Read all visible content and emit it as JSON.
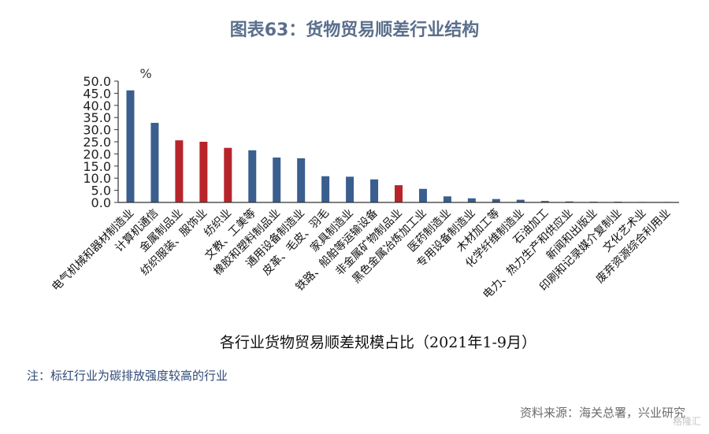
{
  "title": "图表63：货物贸易顺差行业结构",
  "note": "注：标红行业为碳排放强度较高的行业",
  "source": "资料来源：海关总署，兴业研究",
  "watermark": "格隆汇",
  "colors": {
    "blue": "#3a5f8e",
    "red": "#b7252b",
    "axis": "#333333",
    "title": "#5a6f8c"
  },
  "chart_data": {
    "type": "bar",
    "unit_label": "%",
    "xlabel": "各行业货物贸易顺差规模占比（2021年1-9月）",
    "ylabel": "",
    "ylim": [
      0,
      50
    ],
    "yticks": [
      "0.0",
      "5.0",
      "10.0",
      "15.0",
      "20.0",
      "25.0",
      "30.0",
      "35.0",
      "40.0",
      "45.0",
      "50.0"
    ],
    "grid": false,
    "categories": [
      "电气机械和器材制造业",
      "计算机通信",
      "金属制品业",
      "纺织服装、服饰业",
      "纺织业",
      "文教、工美等",
      "橡胶和塑料制品业",
      "通用设备制造业",
      "皮革、毛皮、羽毛",
      "家具制造业",
      "铁路、船舶等运输设备",
      "非金属矿物制品业",
      "黑色金属冶炼加工业",
      "医药制造业",
      "专用设备制造业",
      "木材加工等",
      "化学纤维制造业",
      "石油加工",
      "电力、热力生产和供应业",
      "新闻和出版业",
      "印刷和记录媒介复制业",
      "文化艺术业",
      "废弃资源综合利用业"
    ],
    "values": [
      46.2,
      32.8,
      25.6,
      25.0,
      22.5,
      21.5,
      18.5,
      18.2,
      10.8,
      10.6,
      9.5,
      7.1,
      5.6,
      2.5,
      1.7,
      1.4,
      1.1,
      0.6,
      0.4,
      0.3,
      0.3,
      0.2,
      0.2
    ],
    "highlight": [
      false,
      false,
      true,
      true,
      true,
      false,
      false,
      false,
      false,
      false,
      false,
      true,
      false,
      false,
      false,
      false,
      false,
      false,
      false,
      false,
      false,
      false,
      false
    ]
  }
}
